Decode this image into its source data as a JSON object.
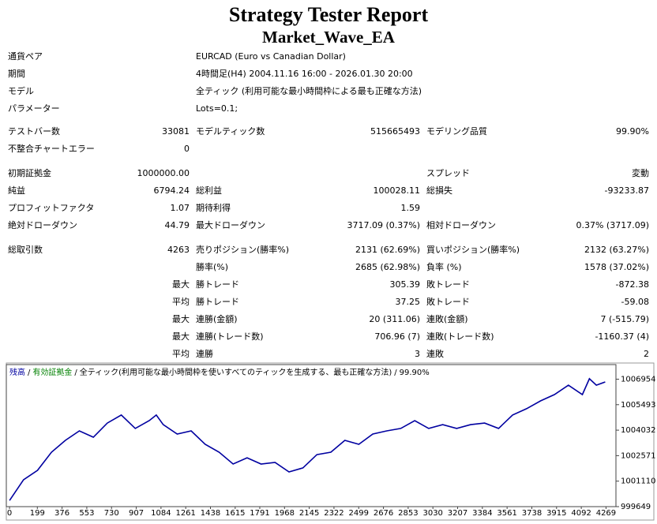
{
  "header": {
    "title": "Strategy Tester Report",
    "subtitle": "Market_Wave_EA"
  },
  "settings": [
    {
      "label": "通貨ペア",
      "value": "EURCAD (Euro vs Canadian Dollar)"
    },
    {
      "label": "期間",
      "value": "4時間足(H4) 2004.11.16 16:00 - 2026.01.30 20:00"
    },
    {
      "label": "モデル",
      "value": "全ティック (利用可能な最小時間枠による最も正確な方法)"
    },
    {
      "label": "パラメーター",
      "value": "Lots=0.1;"
    }
  ],
  "stats": [
    [
      "テストバー数",
      "33081",
      "モデルティック数",
      "515665493",
      "モデリング品質",
      "99.90%"
    ],
    [
      "不整合チャートエラー",
      "0",
      null,
      null,
      null,
      null
    ],
    [
      "初期証拠金",
      "1000000.00",
      null,
      null,
      "スプレッド",
      "変動"
    ],
    [
      "純益",
      "6794.24",
      "総利益",
      "100028.11",
      "総損失",
      "-93233.87"
    ],
    [
      "プロフィットファクタ",
      "1.07",
      "期待利得",
      "1.59",
      null,
      null
    ],
    [
      "絶対ドローダウン",
      "44.79",
      "最大ドローダウン",
      "3717.09 (0.37%)",
      "相対ドローダウン",
      "0.37% (3717.09)"
    ],
    [
      "総取引数",
      "4263",
      "売りポジション(勝率%)",
      "2131 (62.69%)",
      "買いポジション(勝率%)",
      "2132 (63.27%)"
    ],
    [
      null,
      null,
      "勝率(%)",
      "2685 (62.98%)",
      "負率 (%)",
      "1578 (37.02%)"
    ],
    [
      null,
      "最大",
      "勝トレード",
      "305.39",
      "敗トレード",
      "-872.38"
    ],
    [
      null,
      "平均",
      "勝トレード",
      "37.25",
      "敗トレード",
      "-59.08"
    ],
    [
      null,
      "最大",
      "連勝(金額)",
      "20 (311.06)",
      "連敗(金額)",
      "7 (-515.79)"
    ],
    [
      null,
      "最大",
      "連勝(トレード数)",
      "706.96 (7)",
      "連敗(トレード数)",
      "-1160.37 (4)"
    ],
    [
      null,
      "平均",
      "連勝",
      "3",
      "連敗",
      "2"
    ]
  ],
  "chart_data": {
    "type": "line",
    "x": [
      0,
      100,
      200,
      300,
      400,
      500,
      600,
      700,
      800,
      900,
      1000,
      1050,
      1100,
      1200,
      1300,
      1400,
      1500,
      1600,
      1700,
      1800,
      1900,
      2000,
      2100,
      2200,
      2300,
      2400,
      2500,
      2600,
      2700,
      2800,
      2900,
      3000,
      3100,
      3200,
      3300,
      3400,
      3500,
      3600,
      3700,
      3800,
      3900,
      4000,
      4100,
      4150,
      4200,
      4263
    ],
    "series": [
      {
        "name": "残高",
        "color": "#0000a0",
        "values": [
          1000000,
          1001190,
          1001730,
          1002770,
          1003450,
          1003990,
          1003630,
          1004440,
          1004900,
          1004130,
          1004580,
          1004900,
          1004350,
          1003810,
          1003990,
          1003220,
          1002770,
          1002090,
          1002450,
          1002090,
          1002180,
          1001640,
          1001870,
          1002630,
          1002770,
          1003450,
          1003220,
          1003810,
          1003990,
          1004130,
          1004580,
          1004130,
          1004350,
          1004130,
          1004350,
          1004440,
          1004130,
          1004900,
          1005260,
          1005710,
          1006070,
          1006610,
          1006070,
          1006980,
          1006610,
          1006794.24
        ]
      }
    ],
    "legend_separator": "/",
    "annotations": [
      {
        "text": "有効証拠金",
        "color": "#008000"
      },
      {
        "text": "全ティック(利用可能な最小時間枠を使いすべてのティックを生成する、最も正確な方法)",
        "color": "#000000"
      },
      {
        "text": "99.90%",
        "color": "#000000"
      }
    ],
    "xlim": [
      -23,
      4340
    ],
    "ylim": [
      999649,
      1007790
    ],
    "xticks": [
      0,
      199,
      376,
      553,
      730,
      907,
      1084,
      1261,
      1438,
      1615,
      1791,
      1968,
      2145,
      2322,
      2499,
      2676,
      2853,
      3030,
      3207,
      3384,
      3561,
      3738,
      3915,
      4092,
      4269
    ],
    "yticks": [
      999649,
      1001110,
      1002571,
      1004032,
      1005493,
      1006954
    ]
  }
}
